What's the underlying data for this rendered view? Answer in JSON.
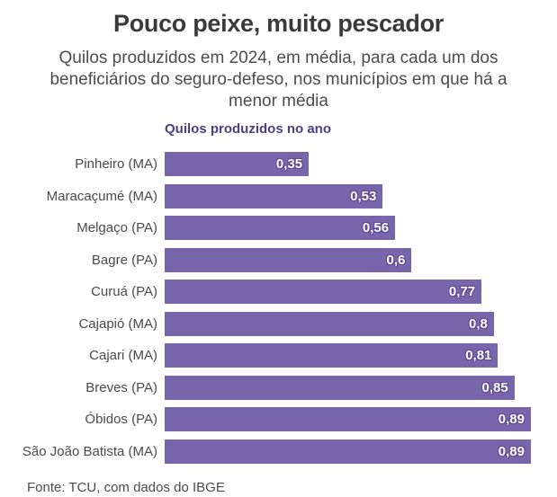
{
  "header": {
    "title": "Pouco peixe, muito pescador",
    "subtitle_lines": [
      "Quilos produzidos em 2024, em média, para cada um dos",
      "beneficiários do seguro-defeso, nos municípios em que há a",
      "menor média"
    ]
  },
  "chart_data": {
    "type": "bar",
    "orientation": "horizontal",
    "axis_label": "Quilos produzidos no ano",
    "categories": [
      "Pinheiro (MA)",
      "Maracaçumé (MA)",
      "Melgaço (PA)",
      "Bagre (PA)",
      "Curuá (PA)",
      "Cajapió (MA)",
      "Cajari (MA)",
      "Breves (PA)",
      "Óbidos (PA)",
      "São João Batista (MA)"
    ],
    "values": [
      0.35,
      0.53,
      0.56,
      0.6,
      0.77,
      0.8,
      0.81,
      0.85,
      0.89,
      0.89
    ],
    "value_labels": [
      "0,35",
      "0,53",
      "0,56",
      "0,6",
      "0,77",
      "0,8",
      "0,81",
      "0,85",
      "0,89",
      "0,89"
    ],
    "xlim": [
      0,
      0.89
    ],
    "grid": false,
    "legend": "none",
    "colors": {
      "bar": "#7766ab",
      "value_label_text": "#ffffff",
      "value_label_halo": "#5d4a92",
      "axis_label": "#4e3d84",
      "title": "#3a3a3c",
      "subtitle": "#4c4c4e",
      "category_label": "#4a4a4a"
    }
  },
  "footer": {
    "source": "Fonte: TCU, com dados do IBGE"
  }
}
